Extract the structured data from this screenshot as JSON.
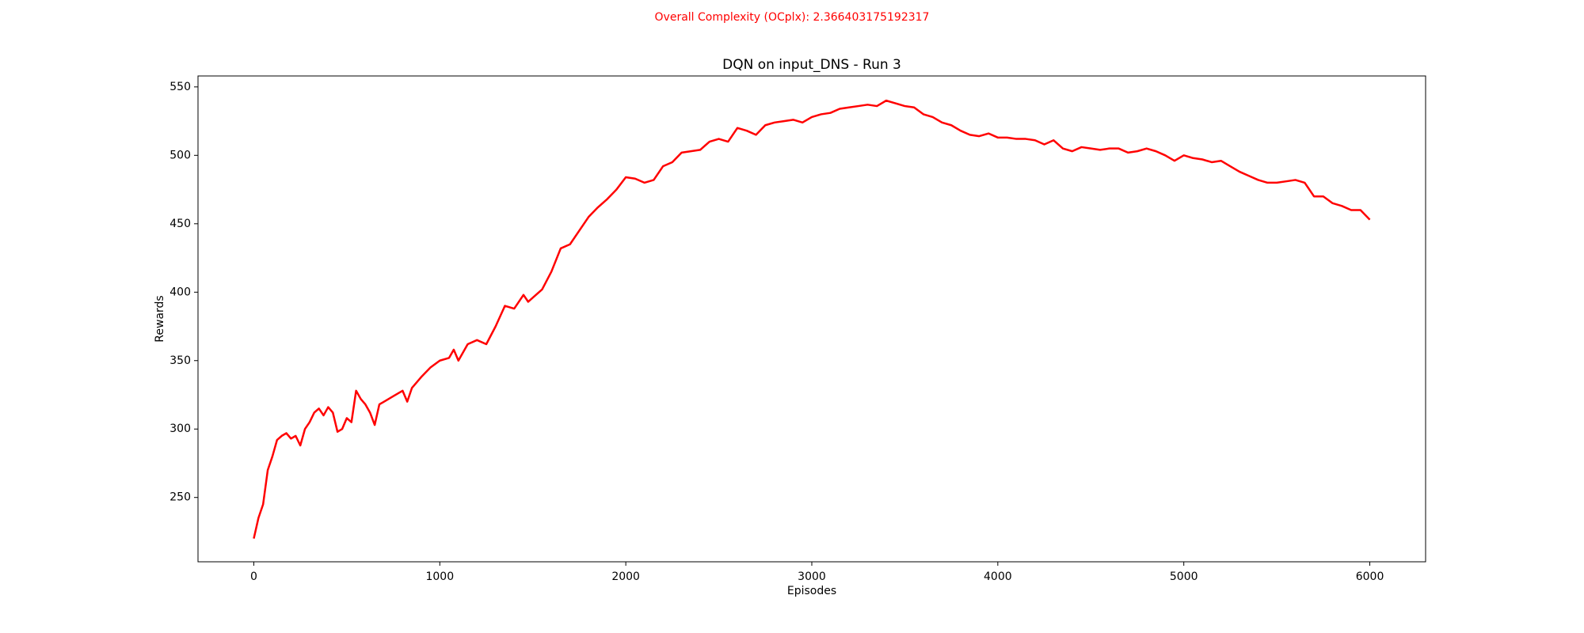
{
  "chart_data": {
    "type": "line",
    "annotation": "Overall Complexity (OCplx): 2.366403175192317",
    "title": "DQN on input_DNS - Run 3",
    "x_label": "Episodes",
    "y_label": "Rewards",
    "color": "#ff0000",
    "xlim": [
      -300,
      6300
    ],
    "xticks": [
      0,
      1000,
      2000,
      3000,
      4000,
      5000,
      6000
    ],
    "ylim": [
      203,
      558
    ],
    "yticks": [
      250,
      300,
      350,
      400,
      450,
      500,
      550
    ],
    "grid": false,
    "x": [
      0,
      25,
      50,
      75,
      100,
      125,
      150,
      175,
      200,
      225,
      250,
      275,
      300,
      325,
      350,
      375,
      400,
      425,
      450,
      475,
      500,
      525,
      550,
      575,
      600,
      625,
      650,
      675,
      700,
      750,
      800,
      825,
      850,
      900,
      950,
      1000,
      1050,
      1075,
      1100,
      1150,
      1200,
      1250,
      1300,
      1350,
      1400,
      1450,
      1475,
      1500,
      1550,
      1600,
      1650,
      1700,
      1750,
      1800,
      1850,
      1900,
      1950,
      2000,
      2050,
      2100,
      2150,
      2200,
      2250,
      2300,
      2350,
      2400,
      2450,
      2500,
      2550,
      2600,
      2650,
      2700,
      2750,
      2800,
      2850,
      2900,
      2950,
      3000,
      3050,
      3100,
      3150,
      3200,
      3250,
      3300,
      3350,
      3400,
      3450,
      3500,
      3550,
      3600,
      3650,
      3700,
      3750,
      3800,
      3850,
      3900,
      3950,
      4000,
      4050,
      4100,
      4150,
      4200,
      4250,
      4300,
      4350,
      4400,
      4450,
      4500,
      4550,
      4600,
      4650,
      4700,
      4750,
      4800,
      4850,
      4900,
      4950,
      5000,
      5050,
      5100,
      5150,
      5200,
      5250,
      5300,
      5350,
      5400,
      5450,
      5500,
      5550,
      5600,
      5650,
      5700,
      5750,
      5800,
      5850,
      5900,
      5950,
      6000
    ],
    "values": [
      220,
      235,
      245,
      270,
      280,
      292,
      295,
      297,
      293,
      295,
      288,
      300,
      305,
      312,
      315,
      310,
      316,
      312,
      298,
      300,
      308,
      305,
      328,
      322,
      318,
      312,
      303,
      318,
      320,
      324,
      328,
      320,
      330,
      338,
      345,
      350,
      352,
      358,
      350,
      362,
      365,
      362,
      375,
      390,
      388,
      398,
      393,
      396,
      402,
      415,
      432,
      435,
      445,
      455,
      462,
      468,
      475,
      484,
      483,
      480,
      482,
      492,
      495,
      502,
      503,
      504,
      510,
      512,
      510,
      520,
      518,
      515,
      522,
      524,
      525,
      526,
      524,
      528,
      530,
      531,
      534,
      535,
      536,
      537,
      536,
      540,
      538,
      536,
      535,
      530,
      528,
      524,
      522,
      518,
      515,
      514,
      516,
      513,
      513,
      512,
      512,
      511,
      508,
      511,
      505,
      503,
      506,
      505,
      504,
      505,
      505,
      502,
      503,
      505,
      503,
      500,
      496,
      500,
      498,
      497,
      495,
      496,
      492,
      488,
      485,
      482,
      480,
      480,
      481,
      482,
      480,
      470,
      470,
      465,
      463,
      460,
      460,
      453
    ]
  }
}
